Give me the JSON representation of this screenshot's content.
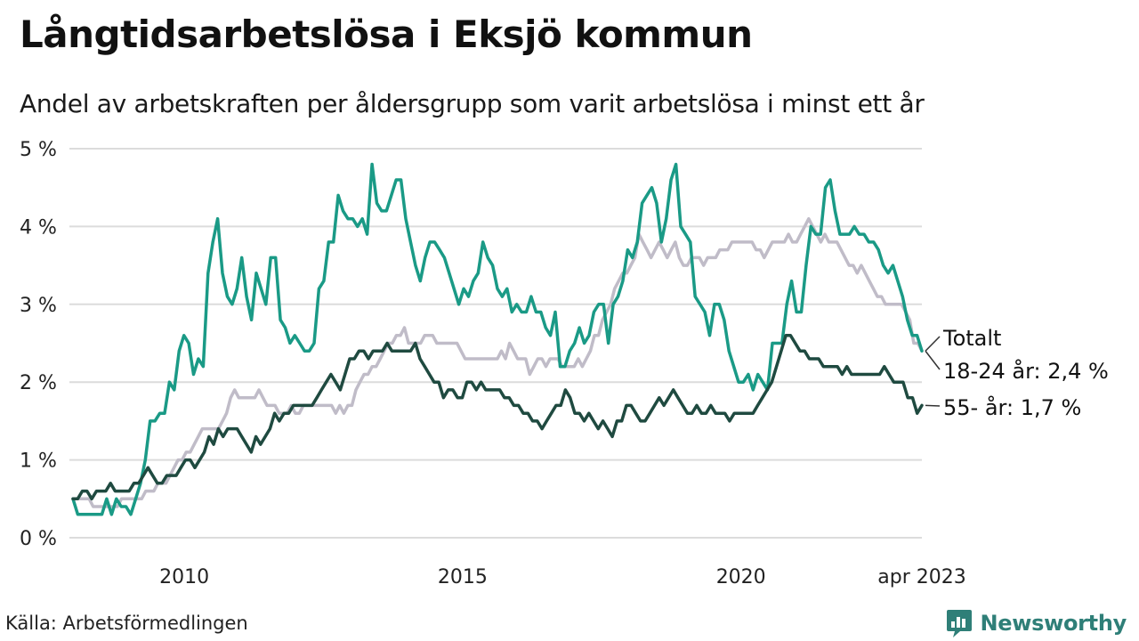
{
  "header": {
    "title": "Långtidsarbetslösa i Eksjö kommun",
    "subtitle": "Andel av arbetskraften per åldersgrupp som varit arbetslösa i minst ett år"
  },
  "footer": {
    "source": "Källa: Arbetsförmedlingen",
    "brand": "Newsworthy"
  },
  "colors": {
    "total": "#c0bcc8",
    "youth": "#1a9a86",
    "senior": "#1f4a40",
    "grid": "#dcdcdc",
    "brand": "#2f7f78"
  },
  "chart_data": {
    "type": "line",
    "title": "Långtidsarbetslösa i Eksjö kommun",
    "subtitle": "Andel av arbetskraften per åldersgrupp som varit arbetslösa i minst ett år",
    "x_start": "2008-01",
    "x_end": "2023-04",
    "x_ticks": [
      "2010",
      "2015",
      "2020",
      "apr 2023"
    ],
    "y_ticks": [
      "0 %",
      "1 %",
      "2 %",
      "3 %",
      "4 %",
      "5 %"
    ],
    "ylim": [
      0,
      5
    ],
    "grid": true,
    "series": [
      {
        "name": "Totalt",
        "label": "Totalt",
        "color": "#c0bcc8",
        "values": [
          0.5,
          0.5,
          0.5,
          0.5,
          0.5,
          0.4,
          0.4,
          0.4,
          0.4,
          0.4,
          0.4,
          0.4,
          0.5,
          0.5,
          0.5,
          0.5,
          0.5,
          0.5,
          0.6,
          0.6,
          0.6,
          0.7,
          0.7,
          0.7,
          0.8,
          0.9,
          1.0,
          1.0,
          1.1,
          1.1,
          1.2,
          1.3,
          1.4,
          1.4,
          1.4,
          1.4,
          1.4,
          1.5,
          1.6,
          1.8,
          1.9,
          1.8,
          1.8,
          1.8,
          1.8,
          1.8,
          1.9,
          1.8,
          1.7,
          1.7,
          1.7,
          1.6,
          1.6,
          1.6,
          1.7,
          1.6,
          1.6,
          1.7,
          1.7,
          1.7,
          1.7,
          1.7,
          1.7,
          1.7,
          1.7,
          1.6,
          1.7,
          1.6,
          1.7,
          1.7,
          1.9,
          2.0,
          2.1,
          2.1,
          2.2,
          2.2,
          2.3,
          2.4,
          2.5,
          2.5,
          2.6,
          2.6,
          2.7,
          2.5,
          2.5,
          2.5,
          2.5,
          2.6,
          2.6,
          2.6,
          2.5,
          2.5,
          2.5,
          2.5,
          2.5,
          2.5,
          2.4,
          2.3,
          2.3,
          2.3,
          2.3,
          2.3,
          2.3,
          2.3,
          2.3,
          2.3,
          2.4,
          2.3,
          2.5,
          2.4,
          2.3,
          2.3,
          2.3,
          2.1,
          2.2,
          2.3,
          2.3,
          2.2,
          2.3,
          2.3,
          2.3,
          2.2,
          2.2,
          2.2,
          2.2,
          2.3,
          2.2,
          2.3,
          2.4,
          2.6,
          2.6,
          2.8,
          2.9,
          3.0,
          3.2,
          3.3,
          3.4,
          3.4,
          3.5,
          3.6,
          3.9,
          3.8,
          3.7,
          3.6,
          3.7,
          3.8,
          3.7,
          3.6,
          3.7,
          3.8,
          3.6,
          3.5,
          3.5,
          3.6,
          3.6,
          3.6,
          3.5,
          3.6,
          3.6,
          3.6,
          3.7,
          3.7,
          3.7,
          3.8,
          3.8,
          3.8,
          3.8,
          3.8,
          3.8,
          3.7,
          3.7,
          3.6,
          3.7,
          3.8,
          3.8,
          3.8,
          3.8,
          3.9,
          3.8,
          3.8,
          3.9,
          4.0,
          4.1,
          4.0,
          3.9,
          3.8,
          3.9,
          3.8,
          3.8,
          3.8,
          3.7,
          3.6,
          3.5,
          3.5,
          3.4,
          3.5,
          3.4,
          3.3,
          3.2,
          3.1,
          3.1,
          3.0,
          3.0,
          3.0,
          3.0,
          3.0,
          2.9,
          2.8,
          2.5,
          2.5,
          2.4
        ]
      },
      {
        "name": "18-24 år",
        "label": "18-24 år: 2,4 %",
        "color": "#1a9a86",
        "values": [
          0.5,
          0.3,
          0.3,
          0.3,
          0.3,
          0.3,
          0.3,
          0.5,
          0.3,
          0.5,
          0.4,
          0.4,
          0.3,
          0.5,
          0.7,
          1.0,
          1.5,
          1.5,
          1.6,
          1.6,
          2.0,
          1.9,
          2.4,
          2.6,
          2.5,
          2.1,
          2.3,
          2.2,
          3.4,
          3.8,
          4.1,
          3.4,
          3.1,
          3.0,
          3.2,
          3.6,
          3.1,
          2.8,
          3.4,
          3.2,
          3.0,
          3.6,
          3.6,
          2.8,
          2.7,
          2.5,
          2.6,
          2.5,
          2.4,
          2.4,
          2.5,
          3.2,
          3.3,
          3.8,
          3.8,
          4.4,
          4.2,
          4.1,
          4.1,
          4.0,
          4.1,
          3.9,
          4.8,
          4.3,
          4.2,
          4.2,
          4.4,
          4.6,
          4.6,
          4.1,
          3.8,
          3.5,
          3.3,
          3.6,
          3.8,
          3.8,
          3.7,
          3.6,
          3.4,
          3.2,
          3.0,
          3.2,
          3.1,
          3.3,
          3.4,
          3.8,
          3.6,
          3.5,
          3.2,
          3.1,
          3.2,
          2.9,
          3.0,
          2.9,
          2.9,
          3.1,
          2.9,
          2.9,
          2.7,
          2.6,
          2.9,
          2.2,
          2.2,
          2.4,
          2.5,
          2.7,
          2.5,
          2.6,
          2.9,
          3.0,
          3.0,
          2.5,
          3.0,
          3.1,
          3.3,
          3.7,
          3.6,
          3.8,
          4.3,
          4.4,
          4.5,
          4.3,
          3.8,
          4.1,
          4.6,
          4.8,
          4.0,
          3.9,
          3.8,
          3.1,
          3.0,
          2.9,
          2.6,
          3.0,
          3.0,
          2.8,
          2.4,
          2.2,
          2.0,
          2.0,
          2.1,
          1.9,
          2.1,
          2.0,
          1.9,
          2.5,
          2.5,
          2.5,
          3.0,
          3.3,
          2.9,
          2.9,
          3.5,
          4.0,
          3.9,
          3.9,
          4.5,
          4.6,
          4.2,
          3.9,
          3.9,
          3.9,
          4.0,
          3.9,
          3.9,
          3.8,
          3.8,
          3.7,
          3.5,
          3.4,
          3.5,
          3.3,
          3.1,
          2.8,
          2.6,
          2.6,
          2.4
        ]
      },
      {
        "name": "55- år",
        "label": "55- år: 1,7 %",
        "color": "#1f4a40",
        "values": [
          0.5,
          0.5,
          0.6,
          0.6,
          0.5,
          0.6,
          0.6,
          0.6,
          0.7,
          0.6,
          0.6,
          0.6,
          0.6,
          0.7,
          0.7,
          0.8,
          0.9,
          0.8,
          0.7,
          0.7,
          0.8,
          0.8,
          0.8,
          0.9,
          1.0,
          1.0,
          0.9,
          1.0,
          1.1,
          1.3,
          1.2,
          1.4,
          1.3,
          1.4,
          1.4,
          1.4,
          1.3,
          1.2,
          1.1,
          1.3,
          1.2,
          1.3,
          1.4,
          1.6,
          1.5,
          1.6,
          1.6,
          1.7,
          1.7,
          1.7,
          1.7,
          1.7,
          1.8,
          1.9,
          2.0,
          2.1,
          2.0,
          1.9,
          2.1,
          2.3,
          2.3,
          2.4,
          2.4,
          2.3,
          2.4,
          2.4,
          2.4,
          2.5,
          2.4,
          2.4,
          2.4,
          2.4,
          2.4,
          2.5,
          2.3,
          2.2,
          2.1,
          2.0,
          2.0,
          1.8,
          1.9,
          1.9,
          1.8,
          1.8,
          2.0,
          2.0,
          1.9,
          2.0,
          1.9,
          1.9,
          1.9,
          1.9,
          1.8,
          1.8,
          1.7,
          1.7,
          1.6,
          1.6,
          1.5,
          1.5,
          1.4,
          1.5,
          1.6,
          1.7,
          1.7,
          1.9,
          1.8,
          1.6,
          1.6,
          1.5,
          1.6,
          1.5,
          1.4,
          1.5,
          1.4,
          1.3,
          1.5,
          1.5,
          1.7,
          1.7,
          1.6,
          1.5,
          1.5,
          1.6,
          1.7,
          1.8,
          1.7,
          1.8,
          1.9,
          1.8,
          1.7,
          1.6,
          1.6,
          1.7,
          1.6,
          1.6,
          1.7,
          1.6,
          1.6,
          1.6,
          1.5,
          1.6,
          1.6,
          1.6,
          1.6,
          1.6,
          1.7,
          1.8,
          1.9,
          2.0,
          2.2,
          2.4,
          2.6,
          2.6,
          2.5,
          2.4,
          2.4,
          2.3,
          2.3,
          2.3,
          2.2,
          2.2,
          2.2,
          2.2,
          2.1,
          2.2,
          2.1,
          2.1,
          2.1,
          2.1,
          2.1,
          2.1,
          2.1,
          2.2,
          2.1,
          2.0,
          2.0,
          2.0,
          1.8,
          1.8,
          1.6,
          1.7
        ]
      }
    ]
  }
}
